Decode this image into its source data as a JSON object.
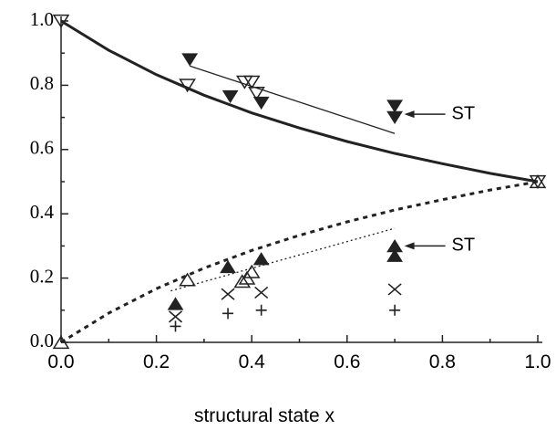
{
  "chart_data": {
    "type": "scatter",
    "xlabel": "structural state x",
    "xlim": [
      0,
      1
    ],
    "ylim": [
      0,
      1
    ],
    "xticks": [
      {
        "value": 0,
        "label": "0.0"
      },
      {
        "value": 0.2,
        "label": "0.2"
      },
      {
        "value": 0.4,
        "label": "0.4"
      },
      {
        "value": 0.6,
        "label": "0.6"
      },
      {
        "value": 0.8,
        "label": "0.8"
      },
      {
        "value": 1,
        "label": "1.0"
      }
    ],
    "yticks": [
      {
        "value": 0,
        "label": "0.0"
      },
      {
        "value": 0.2,
        "label": "0.2"
      },
      {
        "value": 0.4,
        "label": "0.4"
      },
      {
        "value": 0.6,
        "label": "0.6"
      },
      {
        "value": 0.8,
        "label": "0.8"
      },
      {
        "value": 1,
        "label": "1.0"
      }
    ],
    "xminorticks": [
      0.1,
      0.3,
      0.5,
      0.7,
      0.9
    ],
    "yminorticks": [
      0.1,
      0.3,
      0.5,
      0.7,
      0.9
    ],
    "series": [
      {
        "marker": "down-filled",
        "color": "#222222",
        "x": [
          0.27,
          0.355,
          0.42,
          0.7,
          0.7
        ],
        "values": [
          0.88,
          0.765,
          0.745,
          0.735,
          0.7
        ]
      },
      {
        "marker": "down-open",
        "color": "#222222",
        "x": [
          0,
          0.265,
          0.385,
          0.4,
          0.41,
          1.0
        ],
        "values": [
          1.0,
          0.8,
          0.81,
          0.81,
          0.775,
          0.5
        ]
      },
      {
        "marker": "up-filled",
        "color": "#222222",
        "x": [
          0.24,
          0.35,
          0.42,
          0.7,
          0.7
        ],
        "values": [
          0.12,
          0.235,
          0.26,
          0.3,
          0.27
        ]
      },
      {
        "marker": "up-open",
        "color": "#222222",
        "x": [
          0,
          0.265,
          0.38,
          0.39,
          0.4,
          1.0
        ],
        "values": [
          0,
          0.195,
          0.19,
          0.2,
          0.22,
          0.5
        ]
      },
      {
        "marker": "cross",
        "color": "#222222",
        "x": [
          0.24,
          0.35,
          0.42,
          0.7
        ],
        "values": [
          0.08,
          0.15,
          0.155,
          0.165
        ]
      },
      {
        "marker": "plus",
        "color": "#222222",
        "x": [
          0.24,
          0.35,
          0.42,
          0.7
        ],
        "values": [
          0.05,
          0.09,
          0.1,
          0.1
        ]
      },
      {
        "line": "thick-solid",
        "color": "#222222",
        "x": [
          0,
          0.1,
          0.2,
          0.3,
          0.4,
          0.5,
          0.6,
          0.7,
          0.8,
          0.9,
          1.0
        ],
        "values": [
          1.0,
          0.909,
          0.833,
          0.769,
          0.714,
          0.667,
          0.625,
          0.588,
          0.556,
          0.526,
          0.5
        ]
      },
      {
        "line": "thin-solid",
        "color": "#222222",
        "x": [
          0.27,
          0.7
        ],
        "values": [
          0.86,
          0.65
        ]
      },
      {
        "line": "thick-dotted",
        "color": "#222222",
        "x": [
          0,
          0.1,
          0.2,
          0.3,
          0.4,
          0.5,
          0.6,
          0.7,
          0.8,
          0.9,
          1.0
        ],
        "values": [
          0,
          0.091,
          0.167,
          0.231,
          0.286,
          0.333,
          0.375,
          0.412,
          0.444,
          0.474,
          0.5
        ]
      },
      {
        "line": "thin-dotted",
        "color": "#222222",
        "x": [
          0.23,
          0.7
        ],
        "values": [
          0.16,
          0.355
        ]
      }
    ],
    "annotations": [
      {
        "text": "ST",
        "x": 0.72,
        "y": 0.71
      },
      {
        "text": "ST",
        "x": 0.72,
        "y": 0.3
      }
    ]
  }
}
